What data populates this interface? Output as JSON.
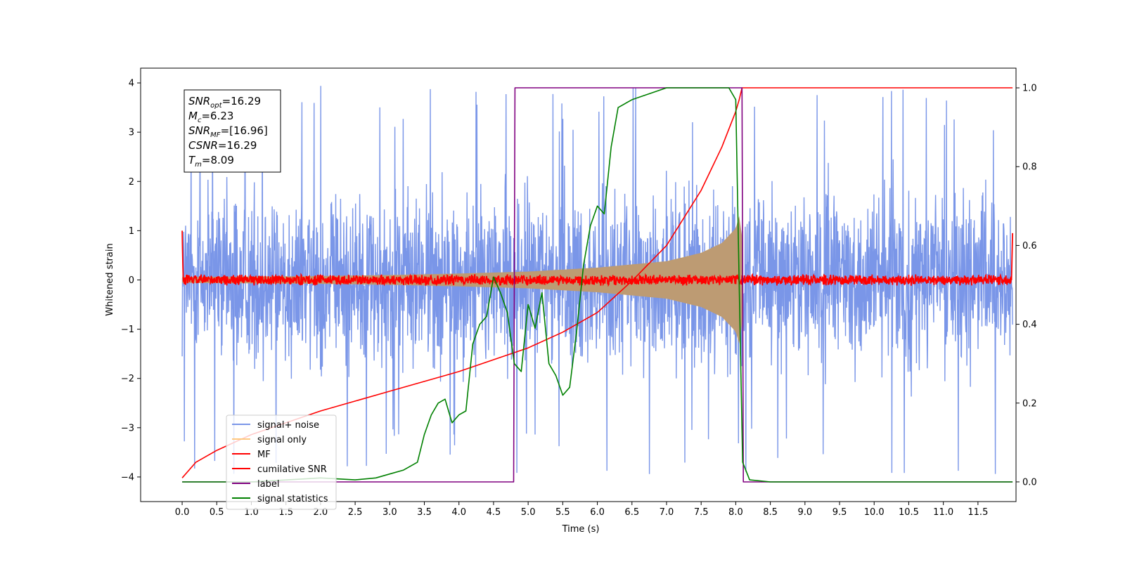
{
  "chart_data": {
    "type": "line",
    "title": "",
    "xlabel": "Time (s)",
    "ylabel": "Whitened strain",
    "y2label": "",
    "xlim": [
      -0.6,
      12.05
    ],
    "ylim": [
      -4.5,
      4.3
    ],
    "y2lim": [
      -0.05,
      1.05
    ],
    "xticks": [
      0.0,
      0.5,
      1.0,
      1.5,
      2.0,
      2.5,
      3.0,
      3.5,
      4.0,
      4.5,
      5.0,
      5.5,
      6.0,
      6.5,
      7.0,
      7.5,
      8.0,
      8.5,
      9.0,
      9.5,
      10.0,
      10.5,
      11.0,
      11.5
    ],
    "xtick_labels": [
      "0.0",
      "0.5",
      "1.0",
      "1.5",
      "2.0",
      "2.5",
      "3.0",
      "3.5",
      "4.0",
      "4.5",
      "5.0",
      "5.5",
      "6.0",
      "6.5",
      "7.0",
      "7.5",
      "8.0",
      "8.5",
      "9.0",
      "9.5",
      "10.0",
      "10.5",
      "11.0",
      "11.5"
    ],
    "yticks": [
      -4,
      -3,
      -2,
      -1,
      0,
      1,
      2,
      3,
      4
    ],
    "ytick_labels": [
      "−4",
      "−3",
      "−2",
      "−1",
      "0",
      "1",
      "2",
      "3",
      "4"
    ],
    "y2ticks": [
      0.0,
      0.2,
      0.4,
      0.6,
      0.8,
      1.0
    ],
    "y2tick_labels": [
      "0.0",
      "0.2",
      "0.4",
      "0.6",
      "0.8",
      "1.0"
    ],
    "grid": false,
    "legend_position": "lower-left",
    "annotation": {
      "position": "top-left",
      "lines": [
        {
          "base": "SNR",
          "sub": "opt",
          "value": "=16.29"
        },
        {
          "base": "M",
          "sub": "c",
          "value": "=6.23"
        },
        {
          "base": "SNR",
          "sub": "MF",
          "value": "=[16.96]"
        },
        {
          "base": "CSNR",
          "sub": "",
          "value": "=16.29"
        },
        {
          "base": "T",
          "sub": "m",
          "value": "=8.09"
        }
      ]
    },
    "series": [
      {
        "name": "signal+ noise",
        "axis": "left",
        "color": "#7a96e8",
        "style": "noisy-band",
        "x_range": [
          0.0,
          12.0
        ],
        "amplitude_typical": 2.3,
        "amplitude_peak": 3.95
      },
      {
        "name": "signal only",
        "axis": "left",
        "color": "#ffc880",
        "fill_color": "#bd9b73",
        "style": "chirp-envelope",
        "x": [
          0.0,
          1.0,
          2.0,
          3.0,
          4.0,
          5.0,
          6.0,
          7.0,
          7.5,
          7.8,
          8.0,
          8.05,
          8.09,
          8.11
        ],
        "envelope": [
          0.06,
          0.07,
          0.08,
          0.1,
          0.13,
          0.17,
          0.25,
          0.38,
          0.55,
          0.75,
          1.05,
          1.3,
          0.9,
          0.0
        ]
      },
      {
        "name": "MF",
        "axis": "left",
        "color": "#ff0000",
        "style": "noisy-center",
        "x_range": [
          0.0,
          12.0
        ],
        "amplitude": 0.12,
        "edge_values": [
          1.0,
          0.95
        ]
      },
      {
        "name": "cumilative SNR",
        "axis": "right",
        "color": "#ff0000",
        "x": [
          0.0,
          0.2,
          0.5,
          1.0,
          2.0,
          3.0,
          4.0,
          5.0,
          5.5,
          6.0,
          6.5,
          7.0,
          7.5,
          7.8,
          8.0,
          8.05,
          8.09,
          8.15,
          9.0,
          10.0,
          11.0,
          12.0
        ],
        "values": [
          0.01,
          0.05,
          0.08,
          0.12,
          0.18,
          0.23,
          0.28,
          0.34,
          0.38,
          0.43,
          0.51,
          0.6,
          0.74,
          0.85,
          0.94,
          0.97,
          1.0,
          1.0,
          1.0,
          1.0,
          1.0,
          1.0
        ]
      },
      {
        "name": "label",
        "axis": "right",
        "color": "#800080",
        "x": [
          0.0,
          4.79,
          4.81,
          8.09,
          8.11,
          12.0
        ],
        "values": [
          0.0,
          0.0,
          1.0,
          1.0,
          0.0,
          0.0
        ]
      },
      {
        "name": "signal statistics",
        "axis": "right",
        "color": "#008000",
        "x": [
          0.0,
          1.0,
          2.0,
          2.5,
          2.8,
          3.0,
          3.2,
          3.4,
          3.5,
          3.6,
          3.7,
          3.8,
          3.9,
          4.0,
          4.1,
          4.2,
          4.3,
          4.4,
          4.5,
          4.6,
          4.7,
          4.8,
          4.9,
          5.0,
          5.1,
          5.2,
          5.3,
          5.4,
          5.5,
          5.6,
          5.7,
          5.8,
          5.9,
          6.0,
          6.1,
          6.2,
          6.3,
          6.5,
          7.0,
          7.5,
          7.9,
          8.0,
          8.05,
          8.1,
          8.2,
          8.5,
          12.0
        ],
        "values": [
          0.0,
          0.0,
          0.01,
          0.005,
          0.01,
          0.02,
          0.03,
          0.05,
          0.12,
          0.17,
          0.2,
          0.21,
          0.15,
          0.17,
          0.18,
          0.35,
          0.4,
          0.42,
          0.52,
          0.48,
          0.43,
          0.3,
          0.28,
          0.45,
          0.39,
          0.48,
          0.3,
          0.27,
          0.22,
          0.24,
          0.38,
          0.55,
          0.65,
          0.7,
          0.68,
          0.85,
          0.95,
          0.97,
          1.0,
          1.0,
          1.0,
          0.97,
          0.5,
          0.05,
          0.005,
          0.0,
          0.0
        ]
      }
    ]
  }
}
